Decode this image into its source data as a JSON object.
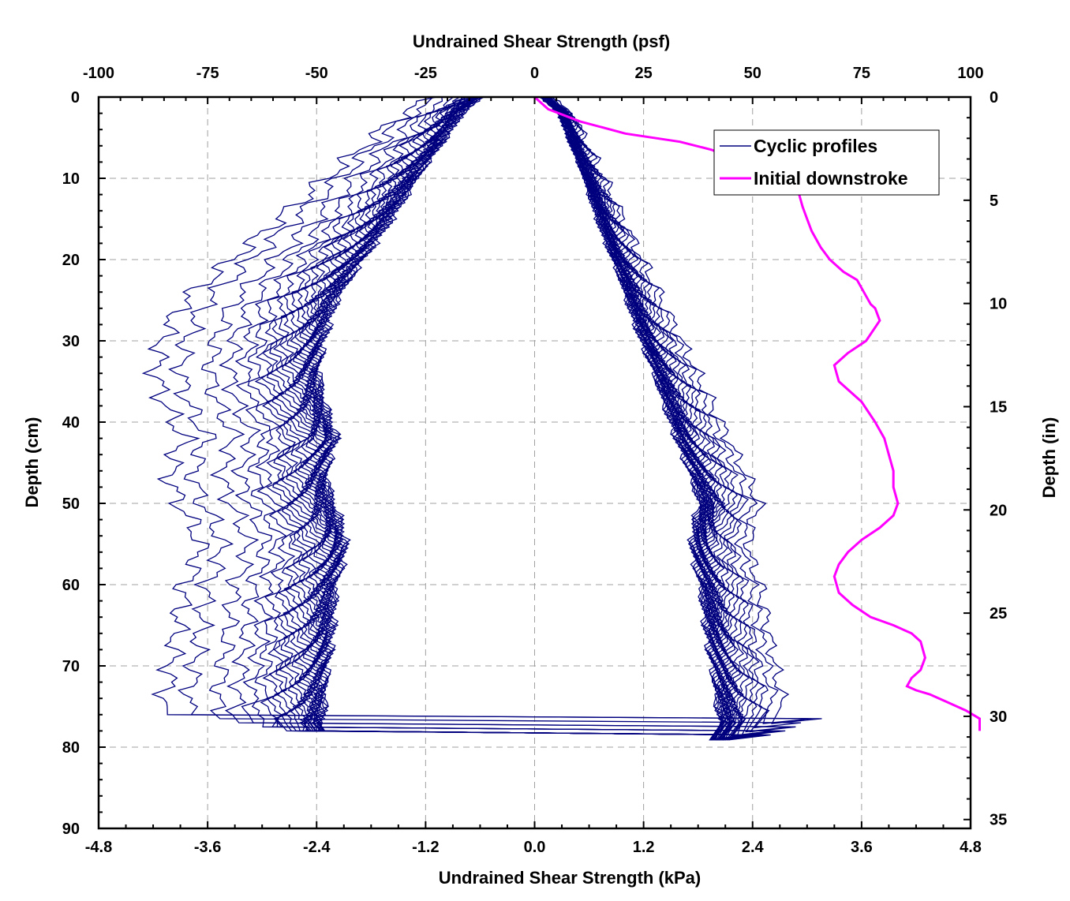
{
  "chart_data": {
    "type": "line",
    "title": "",
    "xlabel_bottom": "Undrained Shear Strength (kPa)",
    "xlabel_top": "Undrained Shear Strength (psf)",
    "ylabel_left": "Depth (cm)",
    "ylabel_right": "Depth (in)",
    "x_bottom": {
      "range": [
        -4.8,
        4.8
      ],
      "ticks": [
        -4.8,
        -3.6,
        -2.4,
        -1.2,
        0.0,
        1.2,
        2.4,
        3.6,
        4.8
      ],
      "tick_labels": [
        "-4.8",
        "-3.6",
        "-2.4",
        "-1.2",
        "0.0",
        "1.2",
        "2.4",
        "3.6",
        "4.8"
      ]
    },
    "x_top": {
      "range": [
        -100,
        100
      ],
      "ticks": [
        -100,
        -75,
        -50,
        -25,
        0,
        25,
        50,
        75,
        100
      ],
      "tick_labels": [
        "-100",
        "-75",
        "-50",
        "-25",
        "0",
        "25",
        "50",
        "75",
        "100"
      ]
    },
    "y_left": {
      "range": [
        0,
        90
      ],
      "inverted": true,
      "ticks": [
        0,
        10,
        20,
        30,
        40,
        50,
        60,
        70,
        80,
        90
      ],
      "tick_labels": [
        "0",
        "10",
        "20",
        "30",
        "40",
        "50",
        "60",
        "70",
        "80",
        "90"
      ]
    },
    "y_right": {
      "range": [
        0,
        35.43
      ],
      "inverted": true,
      "ticks": [
        0,
        5,
        10,
        15,
        20,
        25,
        30,
        35
      ],
      "tick_labels": [
        "0",
        "5",
        "10",
        "15",
        "20",
        "25",
        "30",
        "35"
      ]
    },
    "grid": true,
    "legend": {
      "placement": "top-right",
      "entries": [
        "Cyclic profiles",
        "Initial downstroke"
      ]
    },
    "colors": {
      "cyclic": "#00007f",
      "initial": "#ff00ff",
      "grid": "#a0a0a0",
      "axis": "#000000"
    },
    "series": [
      {
        "name": "Initial downstroke",
        "color": "#ff00ff",
        "points": [
          [
            0.0,
            0
          ],
          [
            0.15,
            1.5
          ],
          [
            0.5,
            3
          ],
          [
            1.0,
            4.5
          ],
          [
            1.6,
            5.5
          ],
          [
            1.95,
            6.5
          ],
          [
            2.2,
            7.7
          ],
          [
            2.5,
            9
          ],
          [
            2.8,
            10.5
          ],
          [
            2.9,
            11.5
          ],
          [
            2.95,
            13.5
          ],
          [
            3.0,
            15
          ],
          [
            3.05,
            16.5
          ],
          [
            3.15,
            18.5
          ],
          [
            3.25,
            20
          ],
          [
            3.4,
            21.5
          ],
          [
            3.55,
            22.5
          ],
          [
            3.65,
            24.5
          ],
          [
            3.7,
            25.5
          ],
          [
            3.75,
            26
          ],
          [
            3.8,
            27.5
          ],
          [
            3.65,
            30
          ],
          [
            3.45,
            31.5
          ],
          [
            3.3,
            33
          ],
          [
            3.35,
            35
          ],
          [
            3.6,
            37.5
          ],
          [
            3.75,
            40
          ],
          [
            3.85,
            42
          ],
          [
            3.9,
            44
          ],
          [
            3.95,
            46
          ],
          [
            3.95,
            48
          ],
          [
            4.0,
            50
          ],
          [
            3.95,
            51.5
          ],
          [
            3.8,
            53
          ],
          [
            3.6,
            54.5
          ],
          [
            3.45,
            56
          ],
          [
            3.35,
            57.5
          ],
          [
            3.3,
            59
          ],
          [
            3.35,
            61
          ],
          [
            3.5,
            62.5
          ],
          [
            3.7,
            64
          ],
          [
            3.95,
            65
          ],
          [
            4.15,
            66
          ],
          [
            4.25,
            67
          ],
          [
            4.3,
            69
          ],
          [
            4.25,
            70.5
          ],
          [
            4.15,
            71.5
          ],
          [
            4.1,
            72.5
          ],
          [
            4.2,
            73
          ],
          [
            4.35,
            73.5
          ],
          [
            4.55,
            74.5
          ],
          [
            4.75,
            75.5
          ],
          [
            4.9,
            76.5
          ],
          [
            4.9,
            78
          ]
        ]
      },
      {
        "name": "Cyclic profiles",
        "color": "#00007f",
        "curves": [
          {
            "left_max": 3.85,
            "right_max": 2.75,
            "bottom": 76.5
          },
          {
            "left_max": 3.6,
            "right_max": 2.65,
            "bottom": 76.5
          },
          {
            "left_max": 3.3,
            "right_max": 2.55,
            "bottom": 77.0
          },
          {
            "left_max": 3.1,
            "right_max": 2.5,
            "bottom": 77.5
          },
          {
            "left_max": 2.95,
            "right_max": 2.45,
            "bottom": 77.5
          },
          {
            "left_max": 2.85,
            "right_max": 2.4,
            "bottom": 78.0
          },
          {
            "left_max": 2.75,
            "right_max": 2.35,
            "bottom": 78.0
          },
          {
            "left_max": 2.7,
            "right_max": 2.3,
            "bottom": 78.0
          },
          {
            "left_max": 2.65,
            "right_max": 2.28,
            "bottom": 78.0
          },
          {
            "left_max": 2.6,
            "right_max": 2.26,
            "bottom": 78.5
          },
          {
            "left_max": 2.55,
            "right_max": 2.24,
            "bottom": 78.5
          },
          {
            "left_max": 2.5,
            "right_max": 2.22,
            "bottom": 78.5
          },
          {
            "left_max": 2.46,
            "right_max": 2.2,
            "bottom": 78.5
          },
          {
            "left_max": 2.43,
            "right_max": 2.19,
            "bottom": 78.5
          },
          {
            "left_max": 2.4,
            "right_max": 2.18,
            "bottom": 78.5
          },
          {
            "left_max": 2.38,
            "right_max": 2.17,
            "bottom": 78.5
          },
          {
            "left_max": 2.36,
            "right_max": 2.16,
            "bottom": 78.5
          },
          {
            "left_max": 2.34,
            "right_max": 2.15,
            "bottom": 78.5
          },
          {
            "left_max": 2.32,
            "right_max": 2.14,
            "bottom": 78.5
          },
          {
            "left_max": 2.3,
            "right_max": 2.13,
            "bottom": 78.5
          },
          {
            "left_max": 2.29,
            "right_max": 2.12,
            "bottom": 78.5
          },
          {
            "left_max": 2.28,
            "right_max": 2.11,
            "bottom": 78.5
          },
          {
            "left_max": 2.27,
            "right_max": 2.1,
            "bottom": 78.5
          },
          {
            "left_max": 2.26,
            "right_max": 2.09,
            "bottom": 78.5
          },
          {
            "left_max": 2.25,
            "right_max": 2.08,
            "bottom": 78.5
          },
          {
            "left_max": 2.24,
            "right_max": 2.07,
            "bottom": 78.5
          },
          {
            "left_max": 2.23,
            "right_max": 2.06,
            "bottom": 78.5
          },
          {
            "left_max": 2.22,
            "right_max": 2.05,
            "bottom": 78.5
          },
          {
            "left_max": 2.21,
            "right_max": 2.04,
            "bottom": 78.5
          },
          {
            "left_max": 2.2,
            "right_max": 2.03,
            "bottom": 78.5
          }
        ]
      }
    ]
  }
}
